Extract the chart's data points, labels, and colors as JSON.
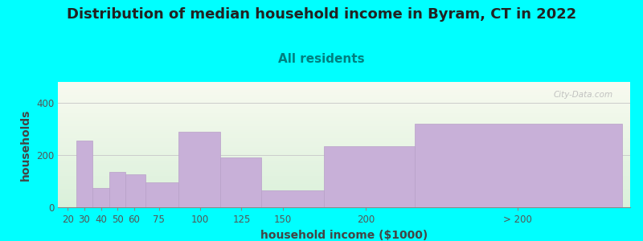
{
  "title": "Distribution of median household income in Byram, CT in 2022",
  "subtitle": "All residents",
  "xlabel": "household income ($1000)",
  "ylabel": "households",
  "background_color": "#00FFFF",
  "bar_color": "#c8b0d8",
  "bar_edge_color": "#b8a0c8",
  "bar_lefts": [
    15,
    25,
    35,
    45,
    55,
    67,
    87,
    112,
    137,
    175,
    230
  ],
  "bar_rights": [
    25,
    35,
    45,
    55,
    67,
    87,
    112,
    137,
    175,
    230,
    355
  ],
  "bar_heights": [
    0,
    255,
    75,
    135,
    125,
    95,
    290,
    190,
    65,
    235,
    320
  ],
  "xtick_labels": [
    "20",
    "30",
    "40",
    "50",
    "60",
    "75",
    "100",
    "125",
    "150",
    "200",
    "> 200"
  ],
  "xtick_positions": [
    20,
    30,
    40,
    50,
    60,
    75,
    100,
    125,
    150,
    200,
    292
  ],
  "ytick_positions": [
    0,
    200,
    400
  ],
  "xlim": [
    14,
    360
  ],
  "ylim": [
    0,
    480
  ],
  "title_fontsize": 13,
  "subtitle_fontsize": 11,
  "axis_label_fontsize": 10,
  "tick_fontsize": 8.5,
  "title_color": "#222222",
  "subtitle_color": "#008080",
  "axis_label_color": "#444444",
  "tick_color": "#555555",
  "watermark_text": "City-Data.com",
  "watermark_color": "#b8b8b8",
  "gradient_bottom": "#daf0da",
  "gradient_top": "#f8faf0"
}
